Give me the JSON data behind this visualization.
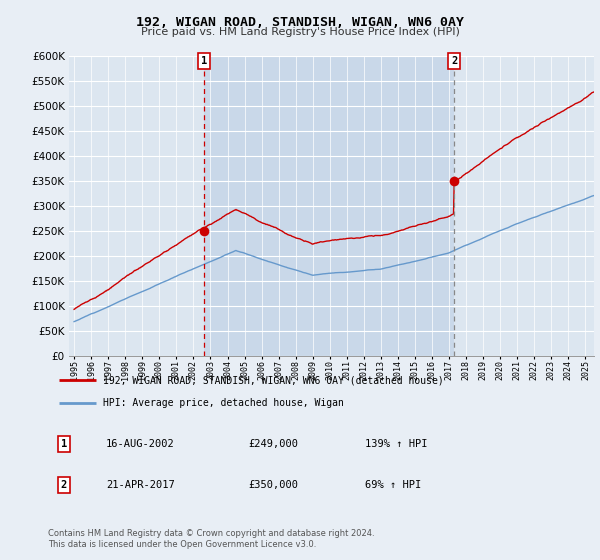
{
  "title": "192, WIGAN ROAD, STANDISH, WIGAN, WN6 0AY",
  "subtitle": "Price paid vs. HM Land Registry's House Price Index (HPI)",
  "legend_label_red": "192, WIGAN ROAD, STANDISH, WIGAN, WN6 0AY (detached house)",
  "legend_label_blue": "HPI: Average price, detached house, Wigan",
  "transaction1_date": "16-AUG-2002",
  "transaction1_price": "£249,000",
  "transaction1_hpi": "139% ↑ HPI",
  "transaction2_date": "21-APR-2017",
  "transaction2_price": "£350,000",
  "transaction2_hpi": "69% ↑ HPI",
  "footnote": "Contains HM Land Registry data © Crown copyright and database right 2024.\nThis data is licensed under the Open Government Licence v3.0.",
  "ylim": [
    0,
    600000
  ],
  "yticks": [
    0,
    50000,
    100000,
    150000,
    200000,
    250000,
    300000,
    350000,
    400000,
    450000,
    500000,
    550000,
    600000
  ],
  "background_color": "#e8eef5",
  "plot_bg_color": "#dce6f0",
  "shaded_region_color": "#ccd9e8",
  "grid_color": "#b0bec5",
  "red_color": "#cc0000",
  "blue_color": "#6699cc",
  "marker1_x": 2002.62,
  "marker1_y": 249000,
  "marker2_x": 2017.3,
  "marker2_y": 350000,
  "vline1_x": 2002.62,
  "vline2_x": 2017.3,
  "xlim_left": 1994.7,
  "xlim_right": 2025.5
}
